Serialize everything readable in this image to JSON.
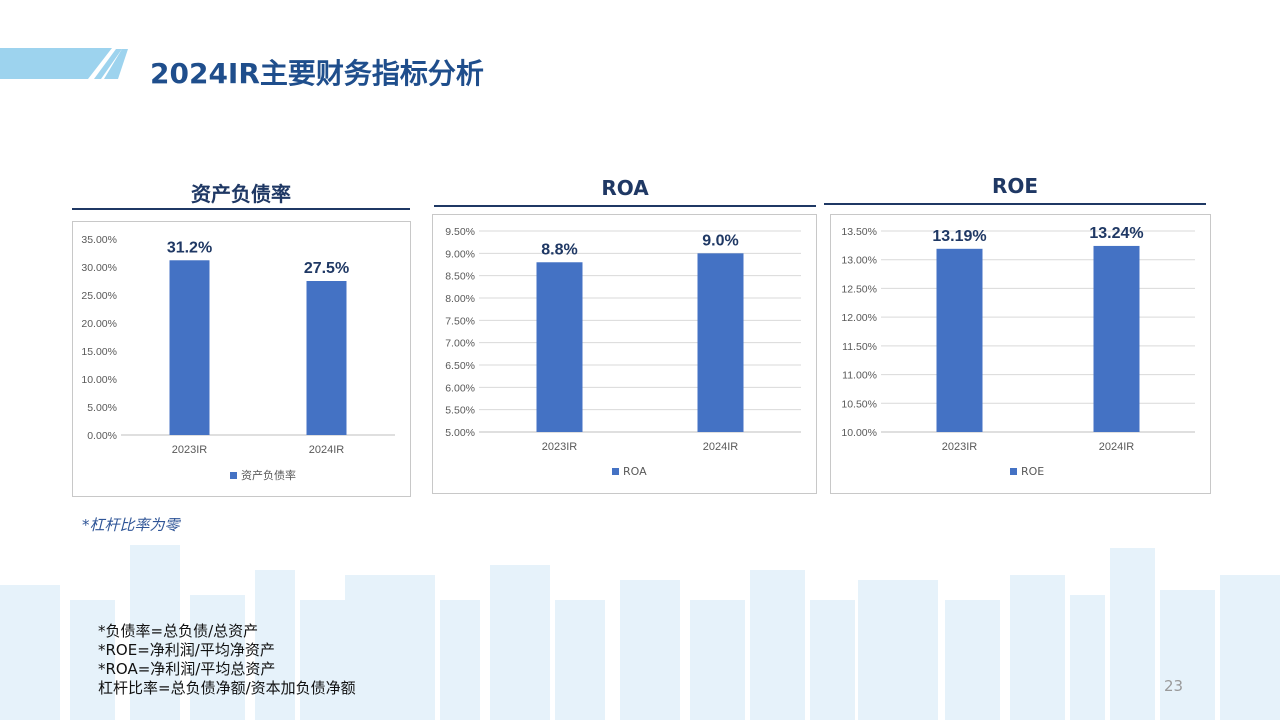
{
  "slide": {
    "title": "2024IR主要财务指标分析",
    "leverage_note": "*杠杆比率为零",
    "formulas": [
      "*负债率=总负债/总资产",
      "*ROE=净利润/平均净资产",
      "*ROA=净利润/平均总资产",
      "杠杆比率=总负债净额/资本加负债净额"
    ],
    "page_number": "23"
  },
  "colors": {
    "bar": "#4472c4",
    "title": "#1f4e8c",
    "heading": "#1f3864",
    "grid": "#d9d9d9",
    "header_stripe": "#9dd3ee",
    "skyline": "#e3f1fa"
  },
  "chart_data": [
    {
      "type": "bar",
      "heading": "资产负债率",
      "categories": [
        "2023IR",
        "2024IR"
      ],
      "series": [
        {
          "name": "资产负债率",
          "values": [
            31.2,
            27.5
          ]
        }
      ],
      "data_labels": [
        "31.2%",
        "27.5%"
      ],
      "yticks": [
        "0.00%",
        "5.00%",
        "10.00%",
        "15.00%",
        "20.00%",
        "25.00%",
        "30.00%",
        "35.00%"
      ],
      "ylim": [
        0,
        35
      ],
      "grid": false,
      "legend": "bottom"
    },
    {
      "type": "bar",
      "heading": "ROA",
      "categories": [
        "2023IR",
        "2024IR"
      ],
      "series": [
        {
          "name": "ROA",
          "values": [
            8.8,
            9.0
          ]
        }
      ],
      "data_labels": [
        "8.8%",
        "9.0%"
      ],
      "yticks": [
        "5.00%",
        "5.50%",
        "6.00%",
        "6.50%",
        "7.00%",
        "7.50%",
        "8.00%",
        "8.50%",
        "9.00%",
        "9.50%"
      ],
      "ylim": [
        5,
        9.5
      ],
      "grid": true,
      "legend": "bottom"
    },
    {
      "type": "bar",
      "heading": "ROE",
      "categories": [
        "2023IR",
        "2024IR"
      ],
      "series": [
        {
          "name": "ROE",
          "values": [
            13.19,
            13.24
          ]
        }
      ],
      "data_labels": [
        "13.19%",
        "13.24%"
      ],
      "yticks": [
        "10.00%",
        "10.50%",
        "11.00%",
        "11.50%",
        "12.00%",
        "12.50%",
        "13.00%",
        "13.50%"
      ],
      "ylim": [
        10,
        13.5
      ],
      "grid": true,
      "legend": "bottom"
    }
  ]
}
